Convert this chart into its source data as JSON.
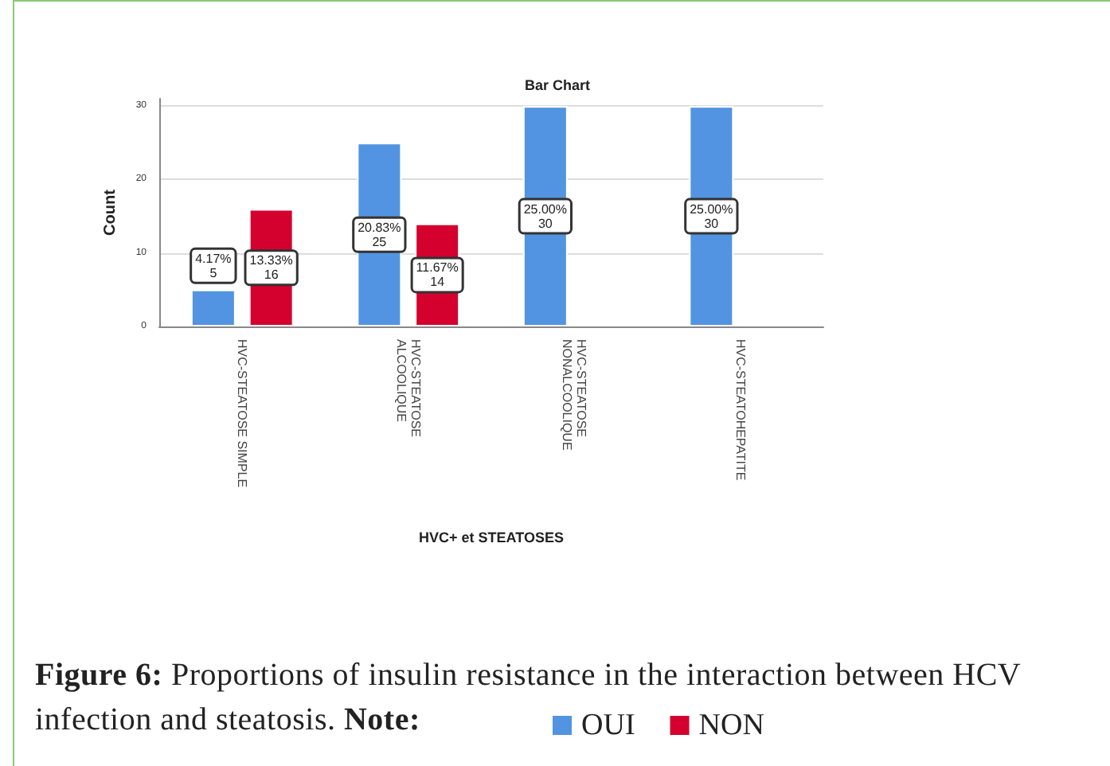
{
  "chart_data": {
    "type": "bar",
    "title": "Bar Chart",
    "xlabel": "HVC+ et STEATOSES",
    "ylabel": "Count",
    "categories": [
      "HVC-STEATOSE SIMPLE",
      "HVC-STEATOSE ALCOOLIQUE",
      "HVC-STEATOSE NONALCOOLIQUE",
      "HVC-STEATOHEPATITE"
    ],
    "series": [
      {
        "name": "OUI",
        "color": "#5294e2",
        "values": [
          5,
          25,
          30,
          30
        ],
        "value_labels": [
          "4.17%\n5",
          "20.83%\n25",
          "25.00%\n30",
          "25.00%\n30"
        ]
      },
      {
        "name": "NON",
        "color": "#d4002e",
        "values": [
          16,
          14,
          null,
          null
        ],
        "value_labels": [
          "13.33%\n16",
          "11.67%\n14",
          null,
          null
        ]
      }
    ],
    "ylim": [
      0,
      31
    ],
    "yticks": [
      0,
      10,
      20,
      30
    ],
    "grid": "y",
    "legend": "bottom",
    "annotations": [
      "Figure 6: Proportions of insulin resistance in the interaction between HCV infection and steatosis.",
      "Note:"
    ]
  }
}
